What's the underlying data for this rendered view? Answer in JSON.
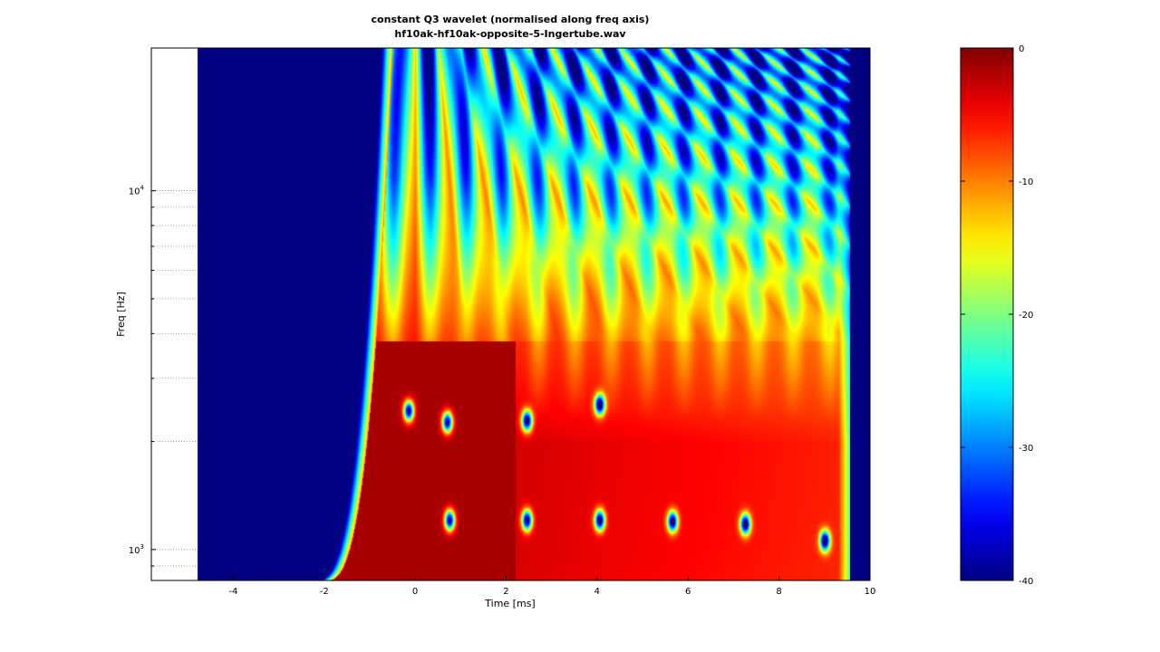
{
  "chart_data": [
    {
      "type": "heatmap",
      "title": "constant Q3 wavelet (normalised along freq axis)",
      "subtitle": "hf10ak-hf10ak-opposite-5-Ingertube.wav",
      "xlabel": "Time [ms]",
      "ylabel": "Freq [Hz]",
      "xlim": [
        -5.8,
        10
      ],
      "ylim": [
        820,
        25000
      ],
      "y_scale": "log",
      "grid": "minor-y-dotted",
      "x_ticks": [
        -4,
        -2,
        0,
        2,
        4,
        6,
        8,
        10
      ],
      "x_tick_labels": [
        "-4",
        "-2",
        "0",
        "2",
        "4",
        "6",
        "8",
        "10"
      ],
      "y_ticks": [
        1000,
        10000
      ],
      "y_tick_labels": [
        {
          "base": "10",
          "exp": "3"
        },
        {
          "base": "10",
          "exp": "4"
        }
      ],
      "y_minor_ticks": [
        900,
        2000,
        3000,
        4000,
        5000,
        6000,
        7000,
        8000,
        9000
      ],
      "blank_until_x": -4.8,
      "signal_onset_x": -2.0,
      "signal_end_x": 9.55,
      "spectral_nulls": [
        {
          "x": 0.75,
          "y": 1210
        },
        {
          "x": 2.45,
          "y": 1210
        },
        {
          "x": 4.05,
          "y": 1210
        },
        {
          "x": 5.65,
          "y": 1200
        },
        {
          "x": 7.25,
          "y": 1180
        },
        {
          "x": 9.0,
          "y": 1060
        },
        {
          "x": -0.15,
          "y": 2440
        },
        {
          "x": 0.7,
          "y": 2270
        },
        {
          "x": 2.45,
          "y": 2290
        },
        {
          "x": 4.05,
          "y": 2540
        }
      ],
      "colormap": "jet",
      "value_range": [
        -40,
        0
      ]
    },
    {
      "type": "colorbar",
      "colormap": "jet",
      "ylim": [
        -40,
        0
      ],
      "ticks": [
        0,
        -10,
        -20,
        -30,
        -40
      ],
      "tick_labels": [
        "0",
        "-10",
        "-20",
        "-30",
        "-40"
      ]
    }
  ],
  "colors": {
    "background": "#ffffff",
    "axis": "#000000",
    "grid": "#7f7f7f",
    "floor": "#00008f",
    "peak": "#800000"
  }
}
